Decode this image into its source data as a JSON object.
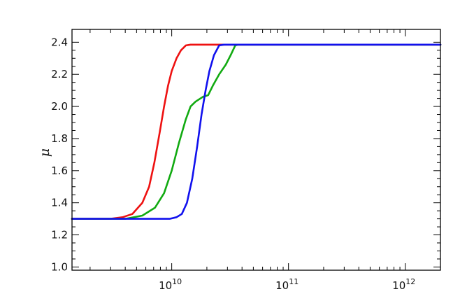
{
  "chart_data": {
    "type": "line",
    "title": "",
    "xlabel": "",
    "ylabel": "μ",
    "xscale": "log",
    "xlim": [
      1400000000.0,
      2000000000000.0
    ],
    "ylim": [
      0.98,
      2.48
    ],
    "grid": false,
    "legend": "none",
    "x_ticks": [
      {
        "value": 10000000000.0,
        "base": "10",
        "exp": "10"
      },
      {
        "value": 100000000000.0,
        "base": "10",
        "exp": "11"
      },
      {
        "value": 1000000000000.0,
        "base": "10",
        "exp": "12"
      }
    ],
    "y_ticks": [
      {
        "value": 1.0,
        "label": "1.0"
      },
      {
        "value": 1.2,
        "label": "1.2"
      },
      {
        "value": 1.4,
        "label": "1.4"
      },
      {
        "value": 1.6,
        "label": "1.6"
      },
      {
        "value": 1.8,
        "label": "1.8"
      },
      {
        "value": 2.0,
        "label": "2.0"
      },
      {
        "value": 2.2,
        "label": "2.2"
      },
      {
        "value": 2.4,
        "label": "2.4"
      }
    ],
    "series": [
      {
        "color": "#ee1111",
        "points": [
          [
            1400000000.0,
            1.3
          ],
          [
            3000000000.0,
            1.3
          ],
          [
            3800000000.0,
            1.31
          ],
          [
            4600000000.0,
            1.33
          ],
          [
            5600000000.0,
            1.4
          ],
          [
            6400000000.0,
            1.5
          ],
          [
            7100000000.0,
            1.65
          ],
          [
            7900000000.0,
            1.84
          ],
          [
            8600000000.0,
            2.0
          ],
          [
            9300000000.0,
            2.13
          ],
          [
            10000000000.0,
            2.22
          ],
          [
            11000000000.0,
            2.3
          ],
          [
            12000000000.0,
            2.35
          ],
          [
            13200000000.0,
            2.38
          ],
          [
            14500000000.0,
            2.385
          ],
          [
            2000000000000.0,
            2.385
          ]
        ]
      },
      {
        "color": "#11aa11",
        "points": [
          [
            1400000000.0,
            1.3
          ],
          [
            4000000000.0,
            1.3
          ],
          [
            5600000000.0,
            1.32
          ],
          [
            7200000000.0,
            1.37
          ],
          [
            8600000000.0,
            1.46
          ],
          [
            10000000000.0,
            1.6
          ],
          [
            11500000000.0,
            1.77
          ],
          [
            13200000000.0,
            1.92
          ],
          [
            14500000000.0,
            2.0
          ],
          [
            16000000000.0,
            2.03
          ],
          [
            18500000000.0,
            2.06
          ],
          [
            20500000000.0,
            2.07
          ],
          [
            22500000000.0,
            2.13
          ],
          [
            25500000000.0,
            2.2
          ],
          [
            29000000000.0,
            2.26
          ],
          [
            32000000000.0,
            2.32
          ],
          [
            35000000000.0,
            2.38
          ],
          [
            37000000000.0,
            2.385
          ],
          [
            2000000000000.0,
            2.385
          ]
        ]
      },
      {
        "color": "#1111ee",
        "points": [
          [
            1400000000.0,
            1.3
          ],
          [
            8000000000.0,
            1.3
          ],
          [
            9600000000.0,
            1.3
          ],
          [
            11000000000.0,
            1.31
          ],
          [
            12200000000.0,
            1.33
          ],
          [
            13500000000.0,
            1.4
          ],
          [
            15000000000.0,
            1.55
          ],
          [
            16500000000.0,
            1.75
          ],
          [
            18000000000.0,
            1.95
          ],
          [
            19500000000.0,
            2.1
          ],
          [
            21000000000.0,
            2.22
          ],
          [
            23000000000.0,
            2.32
          ],
          [
            25500000000.0,
            2.38
          ],
          [
            28000000000.0,
            2.385
          ],
          [
            2000000000000.0,
            2.385
          ]
        ]
      }
    ]
  }
}
